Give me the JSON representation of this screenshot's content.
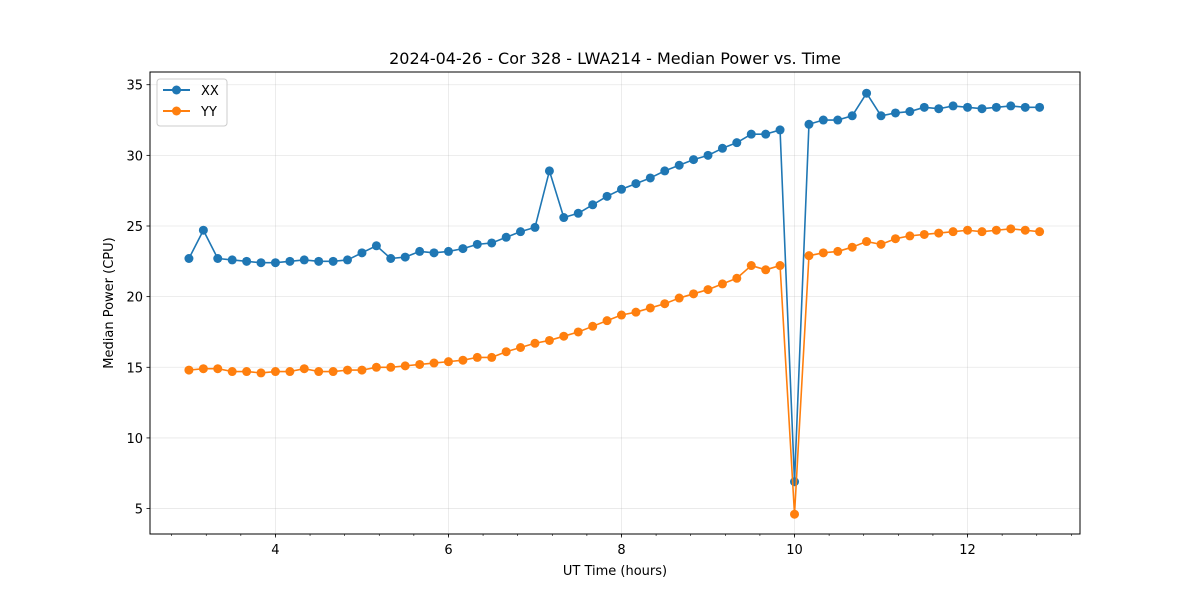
{
  "chart_data": {
    "type": "line",
    "title": "2024-04-26 - Cor 328 - LWA214 - Median Power vs. Time",
    "xlabel": "UT Time (hours)",
    "ylabel": "Median Power (CPU)",
    "xlim": [
      2.55,
      13.3
    ],
    "ylim": [
      3.2,
      35.9
    ],
    "xticks": [
      4,
      6,
      8,
      10,
      12
    ],
    "xtick_labels": [
      "4",
      "6",
      "8",
      "10",
      "12"
    ],
    "yticks": [
      5,
      10,
      15,
      20,
      25,
      30,
      35
    ],
    "ytick_labels": [
      "5",
      "10",
      "15",
      "20",
      "25",
      "30",
      "35"
    ],
    "minor_xtick_step": 0.4,
    "grid": true,
    "legend_position": "top-left",
    "x": [
      3.0,
      3.167,
      3.333,
      3.5,
      3.667,
      3.833,
      4.0,
      4.167,
      4.333,
      4.5,
      4.667,
      4.833,
      5.0,
      5.167,
      5.333,
      5.5,
      5.667,
      5.833,
      6.0,
      6.167,
      6.333,
      6.5,
      6.667,
      6.833,
      7.0,
      7.167,
      7.333,
      7.5,
      7.667,
      7.833,
      8.0,
      8.167,
      8.333,
      8.5,
      8.667,
      8.833,
      9.0,
      9.167,
      9.333,
      9.5,
      9.667,
      9.833,
      10.0,
      10.167,
      10.333,
      10.5,
      10.667,
      10.833,
      11.0,
      11.167,
      11.333,
      11.5,
      11.667,
      11.833,
      12.0,
      12.167,
      12.333,
      12.5,
      12.667,
      12.833
    ],
    "series": [
      {
        "name": "XX",
        "color": "#1f77b4",
        "values": [
          22.7,
          24.7,
          22.7,
          22.6,
          22.5,
          22.4,
          22.4,
          22.5,
          22.6,
          22.5,
          22.5,
          22.6,
          23.1,
          23.6,
          22.7,
          22.8,
          23.2,
          23.1,
          23.2,
          23.4,
          23.7,
          23.8,
          24.2,
          24.6,
          24.9,
          28.9,
          25.6,
          25.9,
          26.5,
          27.1,
          27.6,
          28.0,
          28.4,
          28.9,
          29.3,
          29.7,
          30.0,
          30.5,
          30.9,
          31.5,
          31.5,
          31.8,
          6.9,
          32.2,
          32.5,
          32.5,
          32.8,
          34.4,
          32.8,
          33.0,
          33.1,
          33.4,
          33.3,
          33.5,
          33.4,
          33.3,
          33.4,
          33.5,
          33.4,
          33.4
        ]
      },
      {
        "name": "YY",
        "color": "#ff7f0e",
        "values": [
          14.8,
          14.9,
          14.9,
          14.7,
          14.7,
          14.6,
          14.7,
          14.7,
          14.9,
          14.7,
          14.7,
          14.8,
          14.8,
          15.0,
          15.0,
          15.1,
          15.2,
          15.3,
          15.4,
          15.5,
          15.7,
          15.7,
          16.1,
          16.4,
          16.7,
          16.9,
          17.2,
          17.5,
          17.9,
          18.3,
          18.7,
          18.9,
          19.2,
          19.5,
          19.9,
          20.2,
          20.5,
          20.9,
          21.3,
          22.2,
          21.9,
          22.2,
          4.6,
          22.9,
          23.1,
          23.2,
          23.5,
          23.9,
          23.7,
          24.1,
          24.3,
          24.4,
          24.5,
          24.6,
          24.7,
          24.6,
          24.7,
          24.8,
          24.7,
          24.6
        ]
      }
    ]
  }
}
